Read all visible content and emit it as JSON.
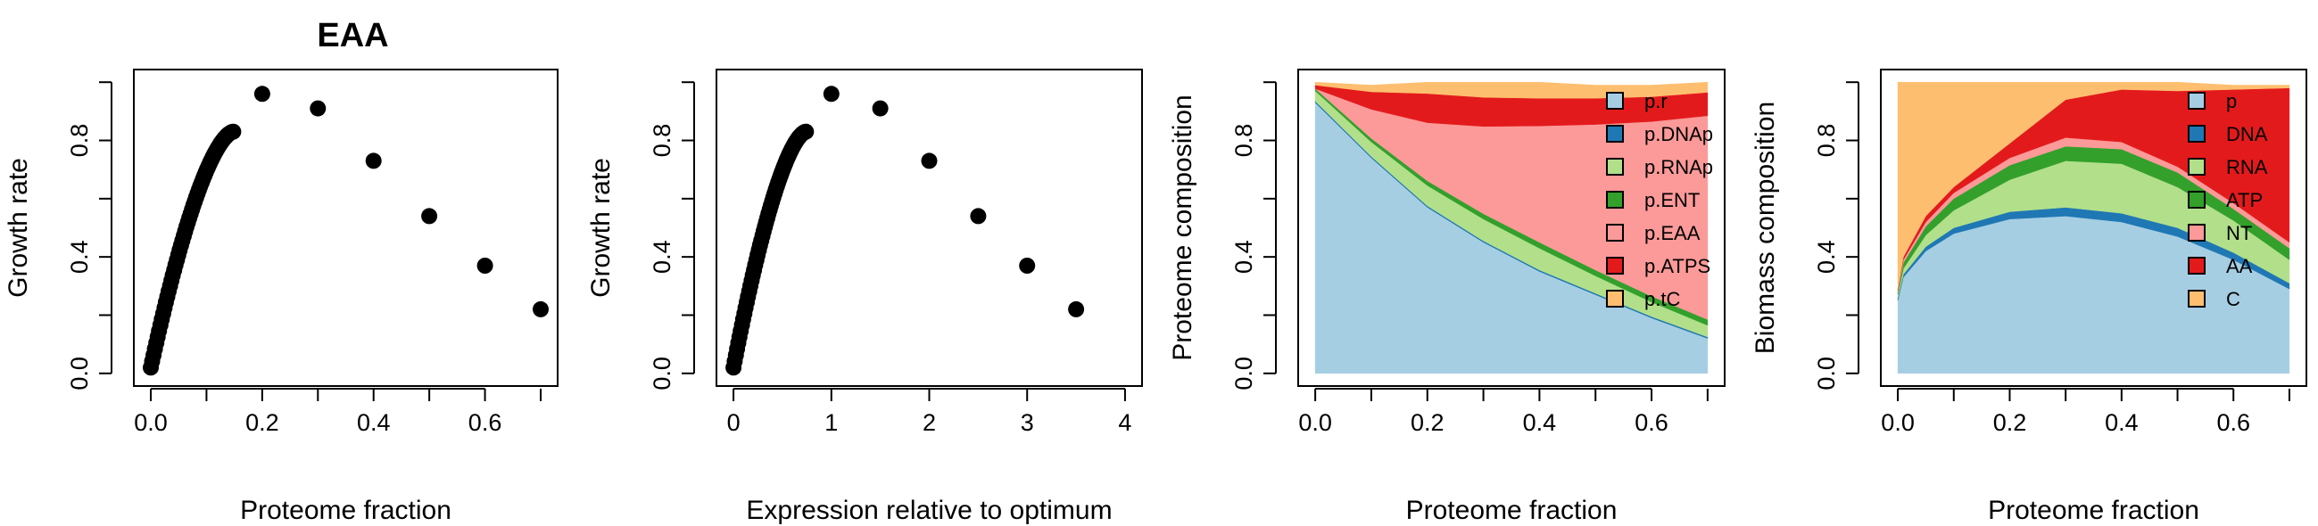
{
  "chart_data": [
    {
      "type": "scatter",
      "title": "EAA",
      "xlabel": "Proteome fraction",
      "ylabel": "Growth rate",
      "xlim": [
        0,
        0.7
      ],
      "ylim": [
        0,
        1.0
      ],
      "xticks": [
        "0.0",
        "0.2",
        "0.4",
        "0.6"
      ],
      "yticks": [
        "0.0",
        "0.4",
        "0.8"
      ],
      "curve": {
        "x_start": 0.0,
        "x_end": 0.148,
        "y_start": 0.02,
        "y_end": 0.83
      },
      "points": [
        {
          "x": 0.2,
          "y": 0.96
        },
        {
          "x": 0.3,
          "y": 0.91
        },
        {
          "x": 0.4,
          "y": 0.73
        },
        {
          "x": 0.5,
          "y": 0.54
        },
        {
          "x": 0.6,
          "y": 0.37
        },
        {
          "x": 0.7,
          "y": 0.22
        }
      ]
    },
    {
      "type": "scatter",
      "title": "",
      "xlabel": "Expression relative to optimum",
      "ylabel": "Growth rate",
      "xlim": [
        0,
        4
      ],
      "ylim": [
        0,
        1.0
      ],
      "xticks": [
        "0",
        "1",
        "2",
        "3",
        "4"
      ],
      "yticks": [
        "0.0",
        "0.4",
        "0.8"
      ],
      "curve": {
        "x_start": 0.0,
        "x_end": 0.74,
        "y_start": 0.02,
        "y_end": 0.83
      },
      "points": [
        {
          "x": 1.0,
          "y": 0.96
        },
        {
          "x": 1.5,
          "y": 0.91
        },
        {
          "x": 2.0,
          "y": 0.73
        },
        {
          "x": 2.5,
          "y": 0.54
        },
        {
          "x": 3.0,
          "y": 0.37
        },
        {
          "x": 3.5,
          "y": 0.22
        }
      ]
    },
    {
      "type": "area",
      "title": "",
      "xlabel": "Proteome fraction",
      "ylabel": "Proteome composition",
      "xlim": [
        0,
        0.7
      ],
      "ylim": [
        0,
        1.0
      ],
      "xticks": [
        "0.0",
        "0.2",
        "0.4",
        "0.6"
      ],
      "yticks": [
        "0.0",
        "0.4",
        "0.8"
      ],
      "legend_position": "top-right",
      "x": [
        0.0,
        0.1,
        0.2,
        0.3,
        0.4,
        0.5,
        0.6,
        0.7
      ],
      "series": [
        {
          "name": "p.r",
          "color": "#A6CEE3",
          "values": [
            0.93,
            0.74,
            0.57,
            0.45,
            0.35,
            0.27,
            0.19,
            0.12
          ]
        },
        {
          "name": "p.DNAp",
          "color": "#1F78B4",
          "values": [
            0.005,
            0.005,
            0.005,
            0.005,
            0.005,
            0.005,
            0.005,
            0.005
          ]
        },
        {
          "name": "p.RNAp",
          "color": "#B2DF8A",
          "values": [
            0.035,
            0.05,
            0.07,
            0.075,
            0.075,
            0.06,
            0.05,
            0.04
          ]
        },
        {
          "name": "p.ENT",
          "color": "#33A02C",
          "values": [
            0.008,
            0.012,
            0.016,
            0.018,
            0.02,
            0.02,
            0.02,
            0.02
          ]
        },
        {
          "name": "p.EAA",
          "color": "#FB9A99",
          "values": [
            0.0,
            0.1,
            0.2,
            0.3,
            0.4,
            0.5,
            0.6,
            0.7
          ]
        },
        {
          "name": "p.ATPS",
          "color": "#E31A1C",
          "values": [
            0.012,
            0.06,
            0.1,
            0.1,
            0.095,
            0.09,
            0.085,
            0.08
          ]
        },
        {
          "name": "p.tC",
          "color": "#FDBF6F",
          "values": [
            0.01,
            0.023,
            0.039,
            0.052,
            0.055,
            0.045,
            0.04,
            0.035
          ]
        }
      ]
    },
    {
      "type": "area",
      "title": "",
      "xlabel": "Proteome fraction",
      "ylabel": "Biomass composition",
      "xlim": [
        0,
        0.7
      ],
      "ylim": [
        0,
        1.0
      ],
      "xticks": [
        "0.0",
        "0.2",
        "0.4",
        "0.6"
      ],
      "yticks": [
        "0.0",
        "0.4",
        "0.8"
      ],
      "legend_position": "top-right",
      "x": [
        0.0,
        0.01,
        0.05,
        0.1,
        0.2,
        0.3,
        0.4,
        0.5,
        0.6,
        0.7
      ],
      "series": [
        {
          "name": "p",
          "color": "#A6CEE3",
          "values": [
            0.25,
            0.33,
            0.42,
            0.48,
            0.53,
            0.54,
            0.52,
            0.47,
            0.39,
            0.29
          ]
        },
        {
          "name": "DNA",
          "color": "#1F78B4",
          "values": [
            0.01,
            0.01,
            0.015,
            0.02,
            0.025,
            0.03,
            0.03,
            0.03,
            0.025,
            0.02
          ]
        },
        {
          "name": "RNA",
          "color": "#B2DF8A",
          "values": [
            0.01,
            0.02,
            0.04,
            0.06,
            0.11,
            0.16,
            0.17,
            0.14,
            0.11,
            0.08
          ]
        },
        {
          "name": "ATP",
          "color": "#33A02C",
          "values": [
            0.01,
            0.02,
            0.03,
            0.04,
            0.05,
            0.05,
            0.05,
            0.05,
            0.04,
            0.04
          ]
        },
        {
          "name": "NT",
          "color": "#FB9A99",
          "values": [
            0.005,
            0.01,
            0.015,
            0.02,
            0.025,
            0.03,
            0.025,
            0.02,
            0.02,
            0.02
          ]
        },
        {
          "name": "AA",
          "color": "#E31A1C",
          "values": [
            0.005,
            0.01,
            0.02,
            0.02,
            0.05,
            0.13,
            0.18,
            0.26,
            0.39,
            0.53
          ]
        },
        {
          "name": "C",
          "color": "#FDBF6F",
          "values": [
            0.71,
            0.6,
            0.46,
            0.36,
            0.21,
            0.06,
            0.025,
            0.03,
            0.015,
            0.01
          ]
        }
      ]
    }
  ]
}
